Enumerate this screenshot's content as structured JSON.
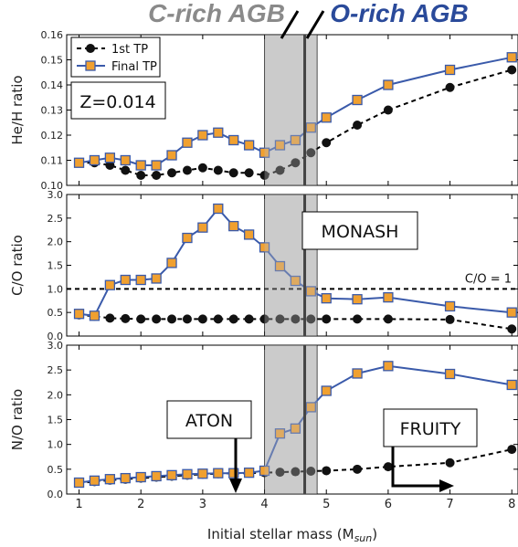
{
  "header": {
    "left_label": "C-rich AGB",
    "right_label": "O-rich AGB",
    "left_color": "#8a8a8a",
    "right_color": "#2a4a9a"
  },
  "xlabel": "Initial stellar mass (M",
  "xlabel_sub": "sun",
  "xlabel_close": ")",
  "colors": {
    "final_line": "#3a5aaa",
    "final_marker": "#f0a030",
    "first_marker": "#111111",
    "shade": "#d3d3d3"
  },
  "chart_data": [
    {
      "type": "line",
      "ylabel": "He/H ratio",
      "xlim": [
        0.8,
        8.1
      ],
      "ylim": [
        0.1,
        0.16
      ],
      "yticks": [
        "0.10",
        "0.11",
        "0.12",
        "0.13",
        "0.14",
        "0.15",
        "0.16"
      ],
      "legend": {
        "placement": "top-left",
        "entries": [
          "1st TP",
          "Final TP"
        ]
      },
      "annotation": "Z=0.014",
      "series": [
        {
          "name": "1st TP",
          "style": "dashed-circle",
          "x": [
            1,
            1.25,
            1.5,
            1.75,
            2,
            2.25,
            2.5,
            2.75,
            3,
            3.25,
            3.5,
            3.75,
            4,
            4.25,
            4.5,
            4.75,
            5,
            5.5,
            6,
            7,
            8
          ],
          "y": [
            0.109,
            0.109,
            0.108,
            0.106,
            0.104,
            0.104,
            0.105,
            0.106,
            0.107,
            0.106,
            0.105,
            0.105,
            0.104,
            0.106,
            0.109,
            0.113,
            0.117,
            0.124,
            0.13,
            0.139,
            0.146
          ]
        },
        {
          "name": "Final TP",
          "style": "solid-square",
          "x": [
            1,
            1.25,
            1.5,
            1.75,
            2,
            2.25,
            2.5,
            2.75,
            3,
            3.25,
            3.5,
            3.75,
            4,
            4.25,
            4.5,
            4.75,
            5,
            5.5,
            6,
            7,
            8
          ],
          "y": [
            0.109,
            0.11,
            0.111,
            0.11,
            0.108,
            0.108,
            0.112,
            0.117,
            0.12,
            0.121,
            0.118,
            0.116,
            0.113,
            0.116,
            0.118,
            0.123,
            0.127,
            0.134,
            0.14,
            0.146,
            0.151
          ]
        }
      ]
    },
    {
      "type": "line",
      "ylabel": "C/O ratio",
      "xlim": [
        0.8,
        8.1
      ],
      "ylim": [
        0.0,
        3.0
      ],
      "yticks": [
        "0.0",
        "0.5",
        "1.0",
        "1.5",
        "2.0",
        "2.5",
        "3.0"
      ],
      "reference_line": {
        "y": 1.0,
        "label": "C/O = 1"
      },
      "annotation": "MONASH",
      "series": [
        {
          "name": "1st TP",
          "style": "dashed-circle",
          "x": [
            1,
            1.25,
            1.5,
            1.75,
            2,
            2.25,
            2.5,
            2.75,
            3,
            3.25,
            3.5,
            3.75,
            4,
            4.25,
            4.5,
            4.75,
            5,
            5.5,
            6,
            7,
            8
          ],
          "y": [
            0.45,
            0.42,
            0.38,
            0.37,
            0.36,
            0.36,
            0.36,
            0.36,
            0.36,
            0.36,
            0.36,
            0.36,
            0.36,
            0.36,
            0.36,
            0.36,
            0.36,
            0.36,
            0.36,
            0.35,
            0.15
          ]
        },
        {
          "name": "Final TP",
          "style": "solid-square",
          "x": [
            1,
            1.25,
            1.5,
            1.75,
            2,
            2.25,
            2.5,
            2.75,
            3,
            3.25,
            3.5,
            3.75,
            4,
            4.25,
            4.5,
            4.75,
            5,
            5.5,
            6,
            7,
            8
          ],
          "y": [
            0.47,
            0.43,
            1.08,
            1.19,
            1.19,
            1.22,
            1.55,
            2.08,
            2.3,
            2.7,
            2.33,
            2.15,
            1.88,
            1.48,
            1.17,
            0.95,
            0.8,
            0.78,
            0.82,
            0.63,
            0.5
          ]
        }
      ]
    },
    {
      "type": "line",
      "ylabel": "N/O ratio",
      "xlim": [
        0.8,
        8.1
      ],
      "ylim": [
        0.0,
        3.0
      ],
      "yticks": [
        "0.0",
        "0.5",
        "1.0",
        "1.5",
        "2.0",
        "2.5",
        "3.0"
      ],
      "xticks": [
        "1",
        "2",
        "3",
        "4",
        "5",
        "6",
        "7",
        "8"
      ],
      "annotations": [
        "ATON",
        "FRUITY"
      ],
      "series": [
        {
          "name": "1st TP",
          "style": "dashed-circle",
          "x": [
            1,
            1.25,
            1.5,
            1.75,
            2,
            2.25,
            2.5,
            2.75,
            3,
            3.25,
            3.5,
            3.75,
            4,
            4.25,
            4.5,
            4.75,
            5,
            5.5,
            6,
            7,
            8
          ],
          "y": [
            0.22,
            0.25,
            0.28,
            0.3,
            0.32,
            0.34,
            0.36,
            0.38,
            0.4,
            0.41,
            0.42,
            0.42,
            0.43,
            0.44,
            0.45,
            0.46,
            0.47,
            0.5,
            0.55,
            0.63,
            0.9
          ]
        },
        {
          "name": "Final TP",
          "style": "solid-square",
          "x": [
            1,
            1.25,
            1.5,
            1.75,
            2,
            2.25,
            2.5,
            2.75,
            3,
            3.25,
            3.5,
            3.75,
            4,
            4.25,
            4.5,
            4.75,
            5,
            5.5,
            6,
            7,
            8
          ],
          "y": [
            0.23,
            0.27,
            0.3,
            0.32,
            0.34,
            0.36,
            0.38,
            0.4,
            0.41,
            0.42,
            0.42,
            0.43,
            0.47,
            1.22,
            1.32,
            1.75,
            2.08,
            2.43,
            2.58,
            2.42,
            2.2
          ]
        }
      ]
    }
  ]
}
